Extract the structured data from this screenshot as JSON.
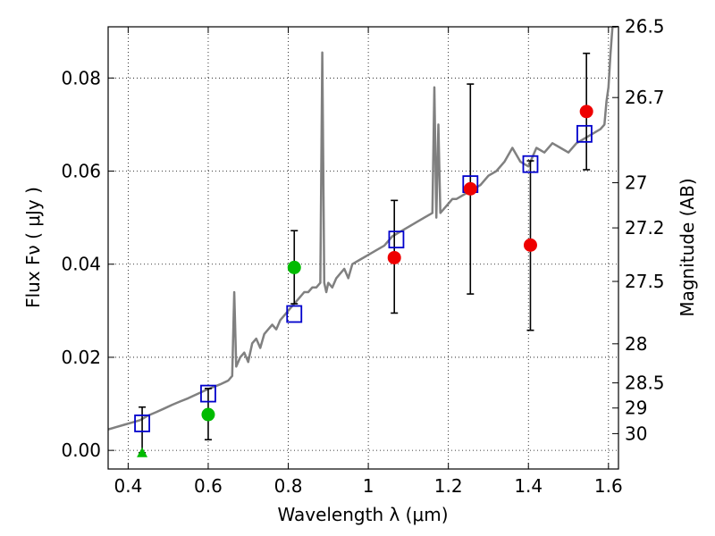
{
  "chart_data": {
    "type": "scatter",
    "xlabel": "Wavelength  λ (μm)",
    "ylabel": "Flux  Fν  ( μJy )",
    "y2label": "Magnitude (AB)",
    "xlim": [
      0.35,
      1.625
    ],
    "ylim": [
      -0.004,
      0.091
    ],
    "grid": true,
    "x_ticks": [
      {
        "value": 0.4,
        "label": "0.4"
      },
      {
        "value": 0.6,
        "label": "0.6"
      },
      {
        "value": 0.8,
        "label": "0.8"
      },
      {
        "value": 1.0,
        "label": "1"
      },
      {
        "value": 1.2,
        "label": "1.2"
      },
      {
        "value": 1.4,
        "label": "1.4"
      },
      {
        "value": 1.6,
        "label": "1.6"
      }
    ],
    "y_ticks": [
      {
        "value": 0.0,
        "label": "0.00"
      },
      {
        "value": 0.02,
        "label": "0.02"
      },
      {
        "value": 0.04,
        "label": "0.04"
      },
      {
        "value": 0.06,
        "label": "0.06"
      },
      {
        "value": 0.08,
        "label": "0.08"
      }
    ],
    "y2_ticks": [
      {
        "label": "26.5",
        "flux": 0.0911
      },
      {
        "label": "26.7",
        "flux": 0.0758
      },
      {
        "label": "27",
        "flux": 0.0575
      },
      {
        "label": "27.2",
        "flux": 0.0478
      },
      {
        "label": "27.5",
        "flux": 0.0363
      },
      {
        "label": "28",
        "flux": 0.0229
      },
      {
        "label": "28.5",
        "flux": 0.0145
      },
      {
        "label": "29",
        "flux": 0.0091
      },
      {
        "label": "30",
        "flux": 0.0036
      }
    ],
    "series": [
      {
        "kind": "line",
        "color": "#808080",
        "x": [
          0.35,
          0.37,
          0.39,
          0.41,
          0.43,
          0.45,
          0.47,
          0.49,
          0.51,
          0.53,
          0.55,
          0.57,
          0.59,
          0.61,
          0.63,
          0.65,
          0.66,
          0.665,
          0.67,
          0.68,
          0.69,
          0.7,
          0.71,
          0.72,
          0.73,
          0.74,
          0.75,
          0.76,
          0.77,
          0.78,
          0.79,
          0.8,
          0.81,
          0.82,
          0.83,
          0.84,
          0.85,
          0.86,
          0.87,
          0.88,
          0.885,
          0.89,
          0.895,
          0.9,
          0.91,
          0.92,
          0.93,
          0.94,
          0.95,
          0.96,
          0.98,
          1.0,
          1.02,
          1.04,
          1.06,
          1.08,
          1.1,
          1.12,
          1.14,
          1.16,
          1.165,
          1.17,
          1.175,
          1.18,
          1.19,
          1.2,
          1.21,
          1.22,
          1.24,
          1.26,
          1.28,
          1.3,
          1.32,
          1.34,
          1.36,
          1.38,
          1.4,
          1.42,
          1.44,
          1.46,
          1.48,
          1.5,
          1.52,
          1.54,
          1.56,
          1.58,
          1.59,
          1.595,
          1.6,
          1.605,
          1.61,
          1.62
        ],
        "y": [
          0.0045,
          0.005,
          0.0055,
          0.006,
          0.0065,
          0.0075,
          0.0082,
          0.009,
          0.0098,
          0.0105,
          0.0112,
          0.012,
          0.0128,
          0.0135,
          0.0142,
          0.015,
          0.016,
          0.034,
          0.018,
          0.02,
          0.021,
          0.019,
          0.023,
          0.024,
          0.022,
          0.025,
          0.026,
          0.027,
          0.026,
          0.028,
          0.029,
          0.03,
          0.031,
          0.032,
          0.033,
          0.034,
          0.034,
          0.035,
          0.035,
          0.036,
          0.0855,
          0.036,
          0.034,
          0.036,
          0.035,
          0.037,
          0.038,
          0.039,
          0.037,
          0.04,
          0.041,
          0.042,
          0.043,
          0.044,
          0.046,
          0.047,
          0.048,
          0.049,
          0.05,
          0.051,
          0.078,
          0.05,
          0.07,
          0.051,
          0.052,
          0.053,
          0.054,
          0.054,
          0.055,
          0.056,
          0.057,
          0.059,
          0.06,
          0.062,
          0.065,
          0.062,
          0.061,
          0.065,
          0.064,
          0.066,
          0.065,
          0.064,
          0.066,
          0.067,
          0.068,
          0.069,
          0.07,
          0.075,
          0.078,
          0.085,
          0.091,
          0.091
        ]
      },
      {
        "kind": "squares",
        "color": "#0000cc",
        "x": [
          0.435,
          0.6,
          0.815,
          1.07,
          1.255,
          1.405,
          1.54
        ],
        "y": [
          0.0058,
          0.0122,
          0.0293,
          0.0453,
          0.0572,
          0.0615,
          0.068
        ]
      },
      {
        "kind": "circles",
        "color": "#00bb00",
        "x": [
          0.6,
          0.815
        ],
        "y": [
          0.0077,
          0.0393
        ]
      },
      {
        "kind": "triangles",
        "color": "#00bb00",
        "x": [
          0.435
        ],
        "y": [
          -0.0005
        ]
      },
      {
        "kind": "circles",
        "color": "#ee0000",
        "x": [
          1.065,
          1.255,
          1.405,
          1.545
        ],
        "y": [
          0.0414,
          0.0562,
          0.0441,
          0.0728
        ]
      }
    ],
    "errorbars": [
      {
        "x": 0.435,
        "y": 0.0058,
        "lo": -0.0005,
        "hi": 0.0093
      },
      {
        "x": 0.6,
        "y": 0.0077,
        "lo": 0.0023,
        "hi": 0.0133
      },
      {
        "x": 0.815,
        "y": 0.0393,
        "lo": 0.0315,
        "hi": 0.0472
      },
      {
        "x": 1.065,
        "y": 0.0414,
        "lo": 0.0295,
        "hi": 0.0537
      },
      {
        "x": 1.255,
        "y": 0.0562,
        "lo": 0.0336,
        "hi": 0.0787
      },
      {
        "x": 1.405,
        "y": 0.0441,
        "lo": 0.0258,
        "hi": 0.0622
      },
      {
        "x": 1.545,
        "y": 0.0728,
        "lo": 0.0603,
        "hi": 0.0853
      }
    ]
  }
}
